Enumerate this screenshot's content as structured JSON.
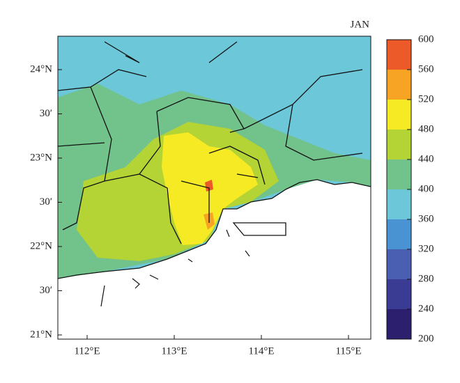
{
  "map": {
    "title": "JAN",
    "x_labels": [
      "112°E",
      "113°E",
      "114°E",
      "115°E"
    ],
    "y_labels": [
      "24°N",
      "30′",
      "23°N",
      "30′",
      "22°N",
      "30′",
      "21°N"
    ],
    "colorbar": {
      "ticks": [
        200,
        240,
        280,
        320,
        360,
        400,
        440,
        480,
        520,
        560,
        600
      ],
      "colors": [
        "#2b1f6e",
        "#3a3c94",
        "#4a5fb2",
        "#4a93d2",
        "#6cc7d8",
        "#72c28c",
        "#b4d334",
        "#f6ea24",
        "#f7a424",
        "#ec5a2a"
      ]
    }
  }
}
